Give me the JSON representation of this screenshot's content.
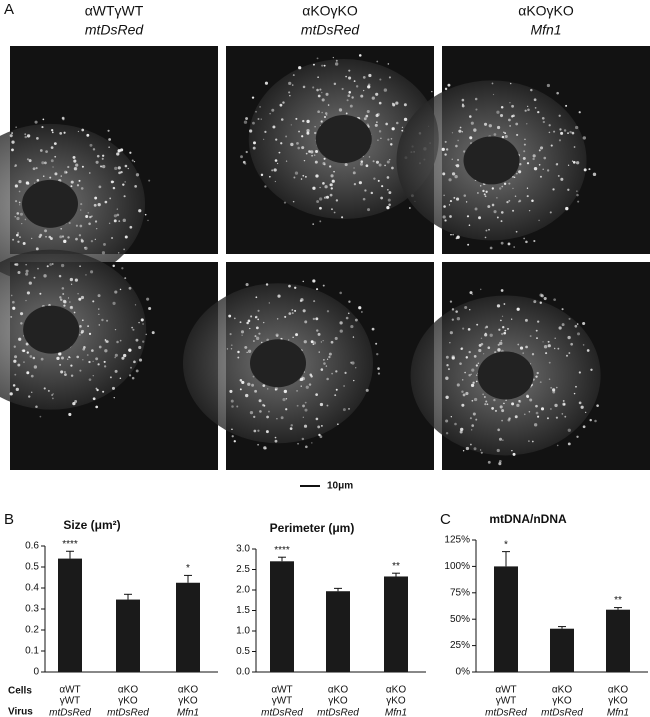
{
  "panel_a": {
    "letter": "A",
    "columns": [
      {
        "cells": "αWTγWT",
        "virus": "mtDsRed"
      },
      {
        "cells": "αKOγKO",
        "virus": "mtDsRed"
      },
      {
        "cells": "αKOγKO",
        "virus": "Mfn1"
      }
    ],
    "scale_bar": "10μm"
  },
  "panel_b_letter": "B",
  "panel_c_letter": "C",
  "row_labels": [
    "Cells",
    "Virus"
  ],
  "chart_data": [
    {
      "type": "bar",
      "title": "Size (μm²)",
      "cells": [
        [
          "αWT",
          "γWT"
        ],
        [
          "αKO",
          "γKO"
        ],
        [
          "αKO",
          "γKO"
        ]
      ],
      "virus": [
        "mtDsRed",
        "mtDsRed",
        "Mfn1"
      ],
      "values": [
        0.54,
        0.345,
        0.425
      ],
      "errors": [
        0.035,
        0.025,
        0.035
      ],
      "stars": [
        "****",
        null,
        "*"
      ],
      "color": "#1a1a1a",
      "ylim": [
        0,
        0.6
      ],
      "yticks": [
        0,
        0.1,
        0.2,
        0.3,
        0.4,
        0.5,
        0.6
      ]
    },
    {
      "type": "bar",
      "title": "Perimeter (μm)",
      "cells": [
        [
          "αWT",
          "γWT"
        ],
        [
          "αKO",
          "γKO"
        ],
        [
          "αKO",
          "γKO"
        ]
      ],
      "virus": [
        "mtDsRed",
        "mtDsRed",
        "Mfn1"
      ],
      "values": [
        2.7,
        1.97,
        2.33
      ],
      "errors": [
        0.1,
        0.07,
        0.08
      ],
      "stars": [
        "****",
        null,
        "**"
      ],
      "color": "#1a1a1a",
      "ylim": [
        0,
        3
      ],
      "yticks": [
        {
          "value": 0,
          "label": "0.0"
        },
        0.5,
        {
          "value": 1,
          "label": "1.0"
        },
        1.5,
        {
          "value": 2,
          "label": "2.0"
        },
        2.5,
        {
          "value": 3,
          "label": "3.0"
        }
      ]
    },
    {
      "type": "bar",
      "title": "mtDNA/nDNA",
      "cells": [
        [
          "αWT",
          "γWT"
        ],
        [
          "αKO",
          "γKO"
        ],
        [
          "αKO",
          "γKO"
        ]
      ],
      "virus": [
        "mtDsRed",
        "mtDsRed",
        "Mfn1"
      ],
      "values": [
        100,
        41,
        59
      ],
      "errors": [
        14,
        2,
        2
      ],
      "stars": [
        "*",
        null,
        "**"
      ],
      "color": "#1a1a1a",
      "ylim": [
        0,
        125
      ],
      "yticks": [
        {
          "value": 0,
          "label": "0%"
        },
        {
          "value": 25,
          "label": "25%"
        },
        {
          "value": 50,
          "label": "50%"
        },
        {
          "value": 75,
          "label": "75%"
        },
        {
          "value": 100,
          "label": "100%"
        },
        {
          "value": 125,
          "label": "125%"
        }
      ]
    }
  ]
}
